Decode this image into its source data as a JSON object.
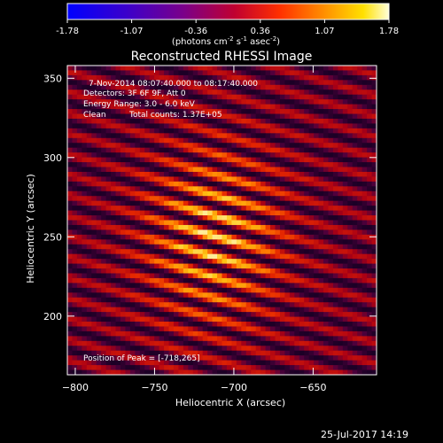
{
  "colorbar": {
    "ticks": [
      "-1.78",
      "-1.07",
      "-0.36",
      "0.36",
      "1.07",
      "1.78"
    ],
    "unit_main": "(photons cm",
    "unit_exp1": "-2",
    "unit_mid": " s",
    "unit_exp2": "-1",
    "unit_tail": " asec",
    "unit_exp3": "-2",
    "unit_close": ")",
    "range": [
      -1.78,
      1.78
    ]
  },
  "chart_data": {
    "type": "heatmap",
    "title": "Reconstructed RHESSI Image",
    "xlabel": "Heliocentric X (arcsec)",
    "ylabel": "Heliocentric Y (arcsec)",
    "xlim": [
      -805,
      -610
    ],
    "ylim": [
      163,
      358
    ],
    "xticks": [
      -800,
      -750,
      -700,
      -650
    ],
    "yticks": [
      200,
      250,
      300,
      350
    ],
    "xtick_labels": [
      "−800",
      "−750",
      "−700",
      "−650"
    ],
    "ytick_labels": [
      "200",
      "250",
      "300",
      "350"
    ],
    "peak": [
      -718,
      265
    ],
    "annotations": {
      "time": "7-Nov-2014 08:07:40.000 to 08:17:40.000",
      "detectors": "Detectors: 3F 6F 9F, Att 0",
      "energy": "Energy Range: 3.0 - 6.0 keV",
      "method": "Clean",
      "counts": "Total counts: 1.37E+05",
      "peak_text": "Position of Peak = [-718,265]"
    }
  },
  "footer": {
    "timestamp": "25-Jul-2017 14:19"
  }
}
